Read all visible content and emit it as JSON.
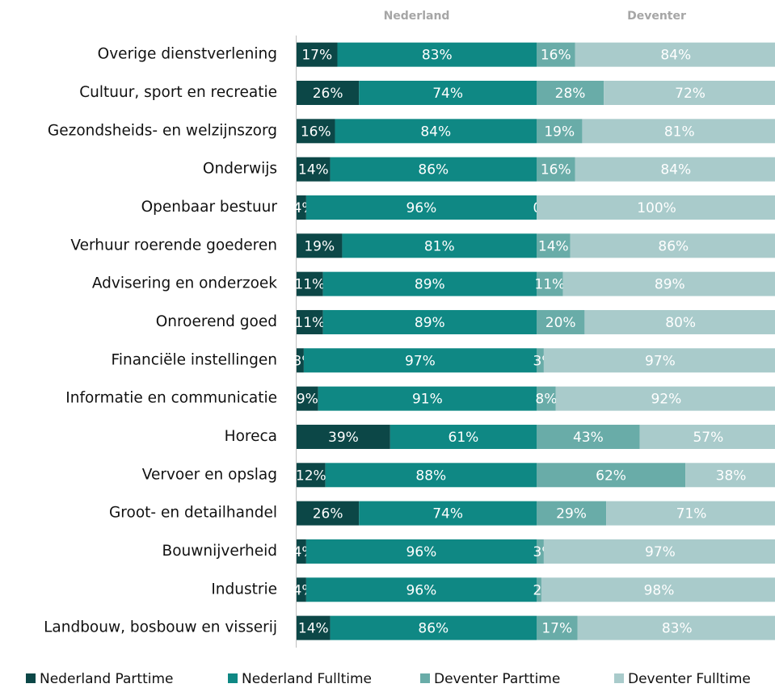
{
  "chart_data": {
    "type": "bar",
    "categories": [
      "Overige dienstverlening",
      "Cultuur, sport en recreatie",
      "Gezondsheids- en welzijnszorg",
      "Onderwijs",
      "Openbaar bestuur",
      "Verhuur roerende goederen",
      "Advisering en onderzoek",
      "Onroerend goed",
      "Financiële instellingen",
      "Informatie en communicatie",
      "Horeca",
      "Vervoer en opslag",
      "Groot- en detailhandel",
      "Bouwnijverheid",
      "Industrie",
      "Landbouw, bosbouw en visserij"
    ],
    "panels": [
      {
        "title": "Nederland",
        "series": [
          {
            "name": "Nederland Parttime",
            "color": "#0c4747",
            "values": [
              17,
              26,
              16,
              14,
              4,
              19,
              11,
              11,
              3,
              9,
              39,
              12,
              26,
              4,
              4,
              14
            ],
            "value_labels": [
              "17%",
              "26%",
              "16%",
              "14%",
              "4%",
              "19%",
              "11%",
              "11%",
              "3%",
              "9%",
              "39%",
              "12%",
              "26%",
              "4%",
              "4%",
              "14%"
            ]
          },
          {
            "name": "Nederland Fulltime",
            "color": "#0f8884",
            "values": [
              83,
              74,
              84,
              86,
              96,
              81,
              89,
              89,
              97,
              91,
              61,
              88,
              74,
              96,
              96,
              86
            ],
            "value_labels": [
              "83%",
              "74%",
              "84%",
              "86%",
              "96%",
              "81%",
              "89%",
              "89%",
              "97%",
              "91%",
              "61%",
              "88%",
              "74%",
              "96%",
              "96%",
              "86%"
            ]
          }
        ]
      },
      {
        "title": "Deventer",
        "series": [
          {
            "name": "Deventer Parttime",
            "color": "#69aca8",
            "values": [
              16,
              28,
              19,
              16,
              0,
              14,
              11,
              20,
              3,
              8,
              43,
              62,
              29,
              3,
              2,
              17
            ],
            "value_labels": [
              "16%",
              "28%",
              "19%",
              "16%",
              "0%",
              "14%",
              "11%",
              "20%",
              "3%",
              "8%",
              "43%",
              "62%",
              "29%",
              "3%",
              "2%",
              "17%"
            ]
          },
          {
            "name": "Deventer Fulltime",
            "color": "#a9cbcb",
            "values": [
              84,
              72,
              81,
              84,
              100,
              86,
              89,
              80,
              97,
              92,
              57,
              38,
              71,
              97,
              98,
              83
            ],
            "value_labels": [
              "84%",
              "72%",
              "81%",
              "84%",
              "100%",
              "86%",
              "89%",
              "80%",
              "97%",
              "92%",
              "57%",
              "38%",
              "71%",
              "97%",
              "98%",
              "83%"
            ]
          }
        ]
      }
    ]
  }
}
